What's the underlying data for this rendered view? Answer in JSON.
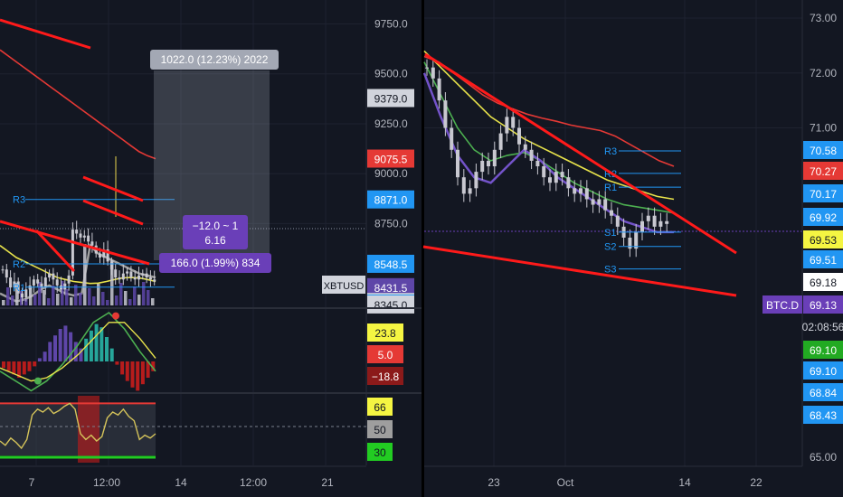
{
  "colors": {
    "bg": "#131722",
    "divider": "#000000",
    "grid": "#1e2230",
    "axis_text": "#b2b5be",
    "red_line": "#ff1a1a",
    "yellow_ma": "#e8e34b",
    "green_ma": "#4caf50",
    "purple_ma": "#7353c9",
    "gray_ma": "#9e9e9e",
    "ma_long": "#e53935",
    "pivot": "#2196f3",
    "candle": "#c8c8d0",
    "volume": "#5e46a8",
    "measure_box": "#9aa0ad",
    "label_purple": "#6a3fb8"
  },
  "chart_data": [
    {
      "id": "xbtusd-price",
      "type": "line",
      "symbol_label": "XBTUSD",
      "y_ticks": [
        "9750.0",
        "9500.0",
        "9250.0",
        "9000.0",
        "8750.0"
      ],
      "ylim": [
        8340,
        9870
      ],
      "x_ticks": [
        "7",
        "12:00",
        "14",
        "12:00",
        "21"
      ],
      "price_tags": [
        {
          "value": 9379.0,
          "text": "9379.0",
          "bg": "#d1d4dc",
          "fg": "#131722"
        },
        {
          "value": 9075.5,
          "text": "9075.5",
          "bg": "#e53935",
          "fg": "#ffffff"
        },
        {
          "value": 8871.0,
          "text": "8871.0",
          "bg": "#2196f3",
          "fg": "#ffffff"
        },
        {
          "value": 8548.5,
          "text": "8548.5",
          "bg": "#2196f3",
          "fg": "#ffffff"
        },
        {
          "value": 8431.5,
          "text": "8431.5",
          "bg": "#5e46a8",
          "fg": "#ffffff"
        },
        {
          "value": 8357.0,
          "text": "8357.0",
          "bg": "#d1d4dc",
          "fg": "#131722"
        },
        {
          "value": 8349.5,
          "text": "8349.5",
          "bg": "#2196f3",
          "fg": "#ffffff"
        },
        {
          "value": 8345.0,
          "text": "8345.0",
          "bg": "#d1d4dc",
          "fg": "#131722"
        }
      ],
      "pivot_levels": [
        {
          "name": "R3",
          "value": 8871
        },
        {
          "name": "R2",
          "value": 8548.5
        },
        {
          "name": "R1",
          "value": 8431.5
        }
      ],
      "measure": {
        "top_label": "1022.0 (12.23%) 2022",
        "mid_line1": "−12.0 ~ 1",
        "mid_line2": "6.16",
        "bottom_label": "166.0 (1.99%) 834"
      },
      "series": [
        {
          "role": "candles",
          "values": [
            8520,
            8480,
            8430,
            8460,
            8400,
            8380,
            8420,
            8440,
            8470,
            8450,
            8430,
            8480,
            8500,
            8470,
            8440,
            8420,
            8450,
            8490,
            8720,
            8700,
            8680,
            8690,
            8660,
            8640,
            8600,
            8580,
            8620,
            8560,
            8520,
            8480,
            8470,
            8500,
            8510,
            8480,
            8470,
            8490,
            8500,
            8480,
            8470,
            8460
          ]
        },
        {
          "role": "ma-long",
          "values": [
            9620,
            9590,
            9560,
            9530,
            9500,
            9470,
            9440,
            9410,
            9380,
            9350,
            9320,
            9290,
            9260,
            9230,
            9200,
            9170,
            9140,
            9110,
            9090,
            9075
          ]
        },
        {
          "role": "ma-yellow",
          "values": [
            8640,
            8610,
            8580,
            8560,
            8540,
            8520,
            8500,
            8480,
            8470,
            8460,
            8455,
            8450,
            8452,
            8460,
            8470,
            8478,
            8480,
            8478,
            8470,
            8460
          ]
        },
        {
          "role": "ma-gray",
          "values": [
            8400,
            8380,
            8360,
            8370,
            8390,
            8420,
            8440,
            8420,
            8400,
            8390,
            8400,
            8640,
            8600,
            8580,
            8560,
            8540,
            8520,
            8500,
            8490,
            8480
          ]
        }
      ]
    },
    {
      "id": "xbtusd-macd",
      "type": "bar",
      "tags": [
        {
          "text": "23.8",
          "bg": "#f5f542",
          "fg": "#131722"
        },
        {
          "text": "5.0",
          "bg": "#e53935",
          "fg": "#ffffff"
        },
        {
          "text": "−18.8",
          "bg": "#8b1a1a",
          "fg": "#ffffff"
        }
      ],
      "values": [
        -4,
        -6,
        -8,
        -10,
        -8,
        -6,
        -3,
        2,
        6,
        12,
        16,
        20,
        22,
        18,
        12,
        8,
        14,
        19,
        23,
        21,
        15,
        8,
        -2,
        -8,
        -12,
        -16,
        -18,
        -14,
        -10,
        -6
      ]
    },
    {
      "id": "xbtusd-rsi",
      "type": "line",
      "tags": [
        {
          "text": "66",
          "bg": "#f5f542",
          "fg": "#131722"
        },
        {
          "text": "50",
          "bg": "#9e9e9e",
          "fg": "#131722"
        },
        {
          "text": "30",
          "bg": "#22cc22",
          "fg": "#131722"
        }
      ],
      "values": [
        40,
        37,
        42,
        39,
        35,
        41,
        58,
        62,
        60,
        63,
        59,
        61,
        64,
        66,
        62,
        45,
        41,
        44,
        40,
        43,
        56,
        60,
        58,
        62,
        57,
        54,
        41,
        44,
        42,
        45
      ]
    },
    {
      "id": "btc-dominance",
      "type": "line",
      "symbol_label": "BTC.D",
      "y_ticks": [
        "73.00",
        "72.00",
        "71.00",
        "65.00"
      ],
      "y_ticks_mid": [
        "69.51",
        "69.18",
        "69.10",
        "68.84",
        "68.43"
      ],
      "ylim": [
        65,
        73.2
      ],
      "x_ticks": [
        "23",
        "Oct",
        "14",
        "22"
      ],
      "price_tags": [
        {
          "text": "70.58",
          "bg": "#2196f3",
          "fg": "#ffffff"
        },
        {
          "text": "70.27",
          "bg": "#e53935",
          "fg": "#ffffff"
        },
        {
          "text": "70.17",
          "bg": "#2196f3",
          "fg": "#ffffff"
        },
        {
          "text": "69.92",
          "bg": "#2196f3",
          "fg": "#ffffff"
        },
        {
          "text": "69.53",
          "bg": "#f5f542",
          "fg": "#131722"
        },
        {
          "text": "69.51",
          "bg": "#2196f3",
          "fg": "#ffffff"
        },
        {
          "text": "69.18",
          "bg": "#ffffff",
          "fg": "#131722"
        },
        {
          "text": "69.13",
          "bg": "#6a3fb8",
          "fg": "#ffffff"
        },
        {
          "text": "02:08:56",
          "bg": "#131722",
          "fg": "#d1d4dc"
        },
        {
          "text": "69.10",
          "bg": "#22aa22",
          "fg": "#ffffff"
        },
        {
          "text": "69.10",
          "bg": "#2196f3",
          "fg": "#ffffff"
        },
        {
          "text": "68.84",
          "bg": "#2196f3",
          "fg": "#ffffff"
        },
        {
          "text": "68.43",
          "bg": "#2196f3",
          "fg": "#ffffff"
        }
      ],
      "pivot_levels": [
        {
          "name": "R3",
          "value": 70.58
        },
        {
          "name": "R2",
          "value": 70.17
        },
        {
          "name": "R1",
          "value": 69.92
        },
        {
          "name": "S1",
          "value": 69.1
        },
        {
          "name": "S2",
          "value": 68.84
        },
        {
          "name": "S3",
          "value": 68.43
        }
      ],
      "series": [
        {
          "role": "candles",
          "values": [
            72.1,
            71.9,
            71.5,
            71.0,
            70.6,
            70.1,
            69.8,
            69.9,
            70.2,
            70.4,
            70.3,
            70.6,
            70.9,
            71.2,
            71.0,
            70.7,
            70.6,
            70.4,
            70.3,
            70.1,
            70.0,
            70.2,
            70.1,
            69.9,
            69.8,
            69.9,
            69.7,
            69.6,
            69.7,
            69.5,
            69.4,
            69.2,
            69.0,
            68.8,
            69.1,
            69.3,
            69.4,
            69.2,
            69.3,
            69.25
          ]
        },
        {
          "role": "ma-long",
          "values": [
            72.3,
            72.2,
            72.0,
            71.8,
            71.6,
            71.45,
            71.35,
            71.25,
            71.18,
            71.12,
            71.05,
            71.0,
            70.95,
            70.85,
            70.7,
            70.55,
            70.4,
            70.3
          ]
        },
        {
          "role": "ma-yellow",
          "values": [
            72.4,
            72.1,
            71.8,
            71.5,
            71.2,
            71.0,
            70.8,
            70.65,
            70.5,
            70.35,
            70.2,
            70.05,
            69.95,
            69.85,
            69.75,
            69.7
          ]
        },
        {
          "role": "ma-green",
          "values": [
            72.2,
            71.6,
            71.0,
            70.6,
            70.4,
            70.5,
            70.55,
            70.4,
            70.2,
            70.0,
            69.85,
            69.7,
            69.6,
            69.55,
            69.5,
            69.45
          ]
        },
        {
          "role": "ma-purple",
          "values": [
            72.0,
            71.2,
            70.5,
            70.1,
            70.0,
            70.3,
            70.6,
            70.4,
            70.1,
            69.9,
            69.7,
            69.5,
            69.3,
            69.2,
            69.1,
            69.1
          ]
        }
      ]
    }
  ]
}
